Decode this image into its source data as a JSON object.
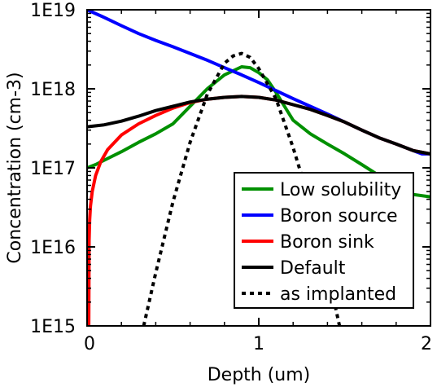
{
  "chart_data": {
    "type": "line",
    "title": "",
    "xlabel": "Depth (um)",
    "ylabel": "Concentration (cm-3)",
    "xlim": [
      0,
      2
    ],
    "ylim": [
      1000000000000000.0,
      1e+19
    ],
    "yscale": "log",
    "grid": false,
    "legend_position": "bottom-right",
    "x_ticks": [
      {
        "value": 0,
        "label": "0"
      },
      {
        "value": 1,
        "label": "1"
      },
      {
        "value": 2,
        "label": "2"
      }
    ],
    "y_ticks": [
      {
        "value": 1000000000000000.0,
        "label": "1E15"
      },
      {
        "value": 1e+16,
        "label": "1E16"
      },
      {
        "value": 1e+17,
        "label": "1E17"
      },
      {
        "value": 1e+18,
        "label": "1E18"
      },
      {
        "value": 1e+19,
        "label": "1E19"
      }
    ],
    "series": [
      {
        "name": "Low solubility",
        "color": "#009000",
        "dash": "solid",
        "points": [
          [
            0,
            1e+17
          ],
          [
            0.05,
            1.1e+17
          ],
          [
            0.1,
            1.25e+17
          ],
          [
            0.2,
            1.6e+17
          ],
          [
            0.3,
            2.1e+17
          ],
          [
            0.4,
            2.7e+17
          ],
          [
            0.5,
            3.6e+17
          ],
          [
            0.6,
            6e+17
          ],
          [
            0.7,
            1e+18
          ],
          [
            0.8,
            1.5e+18
          ],
          [
            0.9,
            1.9e+18
          ],
          [
            0.95,
            1.85e+18
          ],
          [
            1.0,
            1.6e+18
          ],
          [
            1.05,
            1.3e+18
          ],
          [
            1.1,
            9e+17
          ],
          [
            1.15,
            6e+17
          ],
          [
            1.2,
            4e+17
          ],
          [
            1.3,
            2.7e+17
          ],
          [
            1.4,
            2e+17
          ],
          [
            1.5,
            1.5e+17
          ],
          [
            1.6,
            1.1e+17
          ],
          [
            1.7,
            8e+16
          ],
          [
            1.8,
            6e+16
          ],
          [
            1.9,
            4.6e+16
          ],
          [
            2.0,
            4.3e+16
          ]
        ]
      },
      {
        "name": "Boron source",
        "color": "#0000ff",
        "dash": "solid",
        "points": [
          [
            0,
            1e+19
          ],
          [
            0.1,
            8e+18
          ],
          [
            0.2,
            6.3e+18
          ],
          [
            0.3,
            5e+18
          ],
          [
            0.4,
            4.1e+18
          ],
          [
            0.5,
            3.4e+18
          ],
          [
            0.6,
            2.8e+18
          ],
          [
            0.7,
            2.3e+18
          ],
          [
            0.8,
            1.85e+18
          ],
          [
            0.9,
            1.5e+18
          ],
          [
            1.0,
            1.2e+18
          ],
          [
            1.1,
            9.5e+17
          ],
          [
            1.2,
            7.5e+17
          ],
          [
            1.3,
            6e+17
          ],
          [
            1.4,
            4.8e+17
          ],
          [
            1.5,
            3.8e+17
          ],
          [
            1.6,
            3e+17
          ],
          [
            1.7,
            2.4e+17
          ],
          [
            1.8,
            2e+17
          ],
          [
            1.9,
            1.65e+17
          ],
          [
            1.95,
            1.5e+17
          ],
          [
            2.0,
            1.5e+17
          ]
        ]
      },
      {
        "name": "Boron sink",
        "color": "#ff0000",
        "dash": "solid",
        "points": [
          [
            0.01,
            1000000000000000.0
          ],
          [
            0.012,
            1.2e+16
          ],
          [
            0.015,
            2.2e+16
          ],
          [
            0.02,
            3.3e+16
          ],
          [
            0.03,
            5e+16
          ],
          [
            0.05,
            8e+16
          ],
          [
            0.08,
            1.2e+17
          ],
          [
            0.12,
            1.7e+17
          ],
          [
            0.2,
            2.6e+17
          ],
          [
            0.3,
            3.6e+17
          ],
          [
            0.4,
            4.6e+17
          ],
          [
            0.5,
            5.7e+17
          ],
          [
            0.6,
            6.7e+17
          ],
          [
            0.7,
            7.4e+17
          ],
          [
            0.8,
            7.8e+17
          ],
          [
            0.9,
            8e+17
          ],
          [
            1.0,
            7.8e+17
          ],
          [
            1.1,
            7.2e+17
          ],
          [
            1.2,
            6.3e+17
          ],
          [
            1.3,
            5.5e+17
          ],
          [
            1.4,
            4.6e+17
          ],
          [
            1.5,
            3.8e+17
          ],
          [
            1.6,
            3e+17
          ],
          [
            1.7,
            2.4e+17
          ],
          [
            1.8,
            2e+17
          ],
          [
            1.9,
            1.65e+17
          ],
          [
            2.0,
            1.5e+17
          ]
        ]
      },
      {
        "name": "Default",
        "color": "#000000",
        "dash": "solid",
        "points": [
          [
            0,
            3.3e+17
          ],
          [
            0.1,
            3.5e+17
          ],
          [
            0.2,
            3.9e+17
          ],
          [
            0.3,
            4.5e+17
          ],
          [
            0.4,
            5.3e+17
          ],
          [
            0.5,
            6e+17
          ],
          [
            0.6,
            6.8e+17
          ],
          [
            0.7,
            7.4e+17
          ],
          [
            0.8,
            7.8e+17
          ],
          [
            0.9,
            8e+17
          ],
          [
            1.0,
            7.8e+17
          ],
          [
            1.1,
            7.2e+17
          ],
          [
            1.2,
            6.3e+17
          ],
          [
            1.3,
            5.5e+17
          ],
          [
            1.4,
            4.6e+17
          ],
          [
            1.5,
            3.8e+17
          ],
          [
            1.6,
            3e+17
          ],
          [
            1.7,
            2.4e+17
          ],
          [
            1.8,
            2e+17
          ],
          [
            1.9,
            1.65e+17
          ],
          [
            2.0,
            1.5e+17
          ]
        ]
      },
      {
        "name": "as implanted",
        "color": "#000000",
        "dash": "dotted",
        "points": [
          [
            0.33,
            1000000000000000.0
          ],
          [
            0.4,
            4700000000000000.0
          ],
          [
            0.5,
            3.7e+16
          ],
          [
            0.6,
            2.1e+17
          ],
          [
            0.7,
            8.5e+17
          ],
          [
            0.8,
            2.1e+18
          ],
          [
            0.85,
            2.6e+18
          ],
          [
            0.9,
            2.8e+18
          ],
          [
            0.95,
            2.5e+18
          ],
          [
            1.0,
            1.8e+18
          ],
          [
            1.1,
            7.5e+17
          ],
          [
            1.2,
            1.8e+17
          ],
          [
            1.3,
            3.5e+16
          ],
          [
            1.4,
            5000000000000000.0
          ],
          [
            1.47,
            1000000000000000.0
          ]
        ]
      }
    ]
  }
}
